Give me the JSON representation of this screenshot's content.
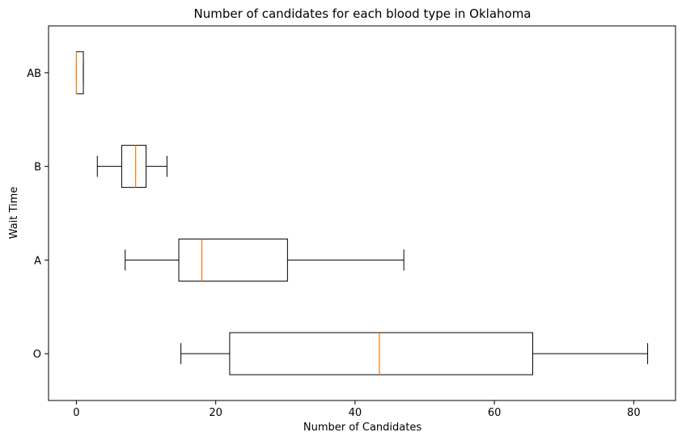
{
  "chart_data": {
    "type": "boxplot",
    "orientation": "horizontal",
    "title": "Number of candidates for each blood type in Oklahoma",
    "xlabel": "Number of Candidates",
    "ylabel": "Wait Time",
    "xlim": [
      -4,
      86
    ],
    "xticks": [
      0,
      20,
      40,
      60,
      80
    ],
    "grid": false,
    "categories": [
      "O",
      "A",
      "B",
      "AB"
    ],
    "boxes": [
      {
        "label": "O",
        "whisker_low": 15,
        "q1": 22,
        "median": 43.5,
        "q3": 65.5,
        "whisker_high": 82
      },
      {
        "label": "A",
        "whisker_low": 7,
        "q1": 14.7,
        "median": 18,
        "q3": 30.3,
        "whisker_high": 47
      },
      {
        "label": "B",
        "whisker_low": 3,
        "q1": 6.5,
        "median": 8.5,
        "q3": 10,
        "whisker_high": 13
      },
      {
        "label": "AB",
        "whisker_low": 0,
        "q1": 0,
        "median": 0,
        "q3": 1,
        "whisker_high": 1
      }
    ],
    "colors": {
      "box": "#000000",
      "median": "#ff7f0e",
      "whisker": "#000000"
    }
  }
}
